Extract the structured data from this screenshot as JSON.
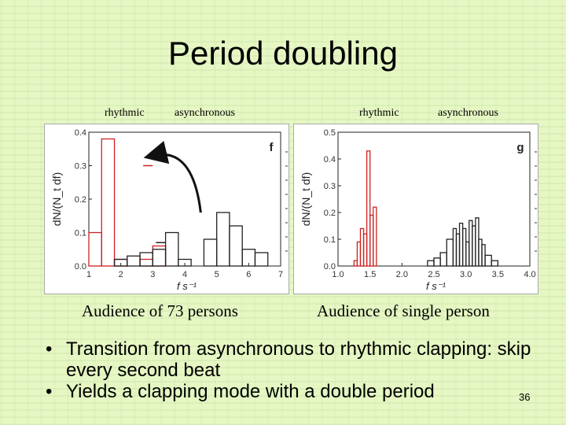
{
  "title": "Period doubling",
  "left": {
    "label_rhythmic": "rhythmic",
    "label_async": "asynchronous",
    "caption": "Audience of 73 persons"
  },
  "right": {
    "label_rhythmic": "rhythmic",
    "label_async": "asynchronous",
    "caption": "Audience of single person"
  },
  "bullets": [
    "Transition from asynchronous to rhythmic clapping: skip every second beat",
    "Yields a clapping mode with a double period"
  ],
  "page_number": "36",
  "chart_data": [
    {
      "type": "bar",
      "panel_letter": "f",
      "xlabel": "f s⁻¹",
      "ylabel": "dN/(N_t df)",
      "xlim": [
        1,
        7
      ],
      "ylim": [
        0,
        0.4
      ],
      "xticks": [
        1,
        2,
        3,
        4,
        5,
        6,
        7
      ],
      "yticks": [
        0.0,
        0.1,
        0.2,
        0.3,
        0.4
      ],
      "arrow": {
        "from": [
          4.5,
          0.16
        ],
        "to": [
          3.0,
          0.33
        ]
      },
      "series": [
        {
          "name": "rhythmic",
          "color": "#cc2222",
          "bins": [
            [
              1.0,
              1.4,
              0.1
            ],
            [
              1.4,
              1.8,
              0.38
            ],
            [
              1.8,
              2.2,
              0.02
            ],
            [
              2.2,
              2.6,
              0.0
            ],
            [
              2.6,
              3.0,
              0.02
            ],
            [
              3.0,
              3.4,
              0.06
            ]
          ],
          "marker": [
            2.7,
            3.0,
            0.3
          ]
        },
        {
          "name": "asynchronous",
          "color": "#222222",
          "bins": [
            [
              1.8,
              2.2,
              0.02
            ],
            [
              2.2,
              2.6,
              0.03
            ],
            [
              2.6,
              3.0,
              0.04
            ],
            [
              3.0,
              3.4,
              0.05
            ],
            [
              3.4,
              3.8,
              0.1
            ],
            [
              3.8,
              4.2,
              0.02
            ],
            [
              4.2,
              4.6,
              0.0
            ],
            [
              4.6,
              5.0,
              0.08
            ],
            [
              5.0,
              5.4,
              0.16
            ],
            [
              5.4,
              5.8,
              0.12
            ],
            [
              5.8,
              6.2,
              0.05
            ],
            [
              6.2,
              6.6,
              0.04
            ]
          ],
          "marker": [
            3.1,
            3.4,
            0.07
          ]
        }
      ]
    },
    {
      "type": "bar",
      "panel_letter": "g",
      "xlabel": "f s⁻¹",
      "ylabel": "dN/(N_t df)",
      "xlim": [
        1.0,
        4.0
      ],
      "ylim": [
        0,
        0.5
      ],
      "xticks": [
        1.0,
        1.5,
        2.0,
        2.5,
        3.0,
        3.5,
        4.0
      ],
      "yticks": [
        0.0,
        0.1,
        0.2,
        0.3,
        0.4,
        0.5
      ],
      "series": [
        {
          "name": "rhythmic",
          "color": "#cc2222",
          "bins": [
            [
              1.25,
              1.3,
              0.02
            ],
            [
              1.3,
              1.35,
              0.09
            ],
            [
              1.35,
              1.4,
              0.14
            ],
            [
              1.4,
              1.45,
              0.12
            ],
            [
              1.45,
              1.5,
              0.43
            ],
            [
              1.5,
              1.55,
              0.19
            ],
            [
              1.55,
              1.6,
              0.22
            ]
          ]
        },
        {
          "name": "asynchronous",
          "color": "#222222",
          "bins": [
            [
              2.4,
              2.5,
              0.02
            ],
            [
              2.5,
              2.6,
              0.03
            ],
            [
              2.6,
              2.7,
              0.05
            ],
            [
              2.7,
              2.8,
              0.1
            ],
            [
              2.8,
              2.85,
              0.14
            ],
            [
              2.85,
              2.9,
              0.12
            ],
            [
              2.9,
              2.95,
              0.16
            ],
            [
              2.95,
              3.0,
              0.14
            ],
            [
              3.0,
              3.05,
              0.09
            ],
            [
              3.05,
              3.1,
              0.17
            ],
            [
              3.1,
              3.15,
              0.15
            ],
            [
              3.15,
              3.2,
              0.18
            ],
            [
              3.2,
              3.25,
              0.1
            ],
            [
              3.25,
              3.3,
              0.08
            ],
            [
              3.3,
              3.4,
              0.04
            ],
            [
              3.4,
              3.5,
              0.02
            ]
          ]
        }
      ]
    }
  ]
}
